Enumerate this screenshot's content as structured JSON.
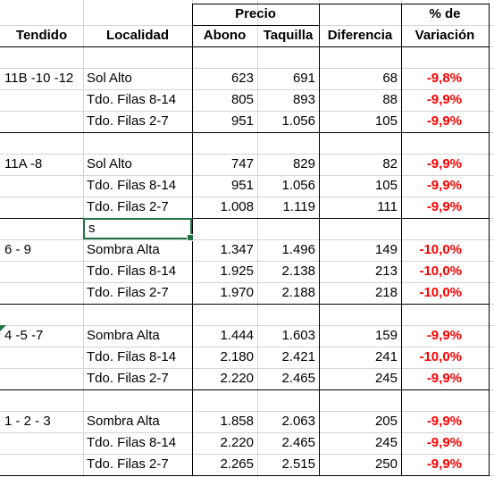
{
  "header": {
    "precio": "Precio",
    "pct_de": "% de",
    "tendido": "Tendido",
    "localidad": "Localidad",
    "abono": "Abono",
    "taquilla": "Taquilla",
    "diferencia": "Diferencia",
    "variacion": "Variación"
  },
  "groups": [
    {
      "tendido": "11B -10 -12",
      "rows": [
        {
          "localidad": "Sol Alto",
          "abono": "623",
          "taquilla": "691",
          "diferencia": "68",
          "variacion": "-9,8%"
        },
        {
          "localidad": "Tdo. Filas 8-14",
          "abono": "805",
          "taquilla": "893",
          "diferencia": "88",
          "variacion": "-9,9%"
        },
        {
          "localidad": "Tdo. Filas 2-7",
          "abono": "951",
          "taquilla": "1.056",
          "diferencia": "105",
          "variacion": "-9,9%"
        }
      ]
    },
    {
      "tendido": "11A -8",
      "rows": [
        {
          "localidad": "Sol Alto",
          "abono": "747",
          "taquilla": "829",
          "diferencia": "82",
          "variacion": "-9,9%"
        },
        {
          "localidad": "Tdo. Filas 8-14",
          "abono": "951",
          "taquilla": "1.056",
          "diferencia": "105",
          "variacion": "-9,9%"
        },
        {
          "localidad": "Tdo. Filas 2-7",
          "abono": "1.008",
          "taquilla": "1.119",
          "diferencia": "111",
          "variacion": "-9,9%"
        }
      ]
    },
    {
      "tendido": "6 - 9",
      "rows": [
        {
          "localidad": "Sombra Alta",
          "abono": "1.347",
          "taquilla": "1.496",
          "diferencia": "149",
          "variacion": "-10,0%"
        },
        {
          "localidad": "Tdo. Filas 8-14",
          "abono": "1.925",
          "taquilla": "2.138",
          "diferencia": "213",
          "variacion": "-10,0%"
        },
        {
          "localidad": "Tdo. Filas 2-7",
          "abono": "1.970",
          "taquilla": "2.188",
          "diferencia": "218",
          "variacion": "-10,0%"
        }
      ]
    },
    {
      "tendido": "4 -5 -7",
      "rows": [
        {
          "localidad": "Sombra Alta",
          "abono": "1.444",
          "taquilla": "1.603",
          "diferencia": "159",
          "variacion": "-9,9%"
        },
        {
          "localidad": "Tdo. Filas 8-14",
          "abono": "2.180",
          "taquilla": "2.421",
          "diferencia": "241",
          "variacion": "-10,0%"
        },
        {
          "localidad": "Tdo. Filas 2-7",
          "abono": "2.220",
          "taquilla": "2.465",
          "diferencia": "245",
          "variacion": "-9,9%"
        }
      ]
    },
    {
      "tendido": "1 - 2 - 3",
      "rows": [
        {
          "localidad": "Sombra Alta",
          "abono": "1.858",
          "taquilla": "2.063",
          "diferencia": "205",
          "variacion": "-9,9%"
        },
        {
          "localidad": "Tdo. Filas 8-14",
          "abono": "2.220",
          "taquilla": "2.465",
          "diferencia": "245",
          "variacion": "-9,9%"
        },
        {
          "localidad": "Tdo. Filas 2-7",
          "abono": "2.265",
          "taquilla": "2.515",
          "diferencia": "250",
          "variacion": "-9,9%"
        }
      ]
    }
  ],
  "active_cell": {
    "value": "s"
  },
  "colors": {
    "negative": "#ff0000",
    "selection": "#217346"
  }
}
